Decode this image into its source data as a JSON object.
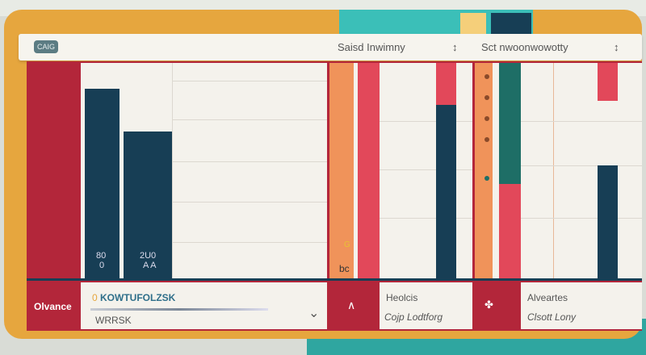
{
  "header": {
    "badge": "CAIG",
    "title_left": "Saisd Inwimny",
    "sort_left": "↕",
    "title_right": "Sct nwoonwowotty",
    "sort_right": "↕"
  },
  "bars": [
    {
      "label_top": "80",
      "label_bottom": "0",
      "level": 0.88
    },
    {
      "label_top": "2U0",
      "label_bottom": "A A",
      "level": 0.68
    }
  ],
  "footer": {
    "left_label": "Olvance",
    "field_title": "KOWTUFOLZSK",
    "field_prefix": "0",
    "field_value": "WRRSK",
    "chevron": "⌄",
    "cell2_icon": "∧",
    "cell2_title": "Heolcis",
    "cell2_value": "Cojp Lodtforg",
    "cell3_icon": "✤",
    "cell3_title": "Alveartes",
    "cell3_value": "Clsott Lony"
  },
  "strip_labels": {
    "a": "G",
    "b": "bc"
  },
  "colors": {
    "frame": "#e6a63e",
    "red": "#b3263a",
    "navy": "#173e55",
    "accent_red": "#e2485a",
    "orange": "#f0935a",
    "teal": "#1e6e66"
  }
}
